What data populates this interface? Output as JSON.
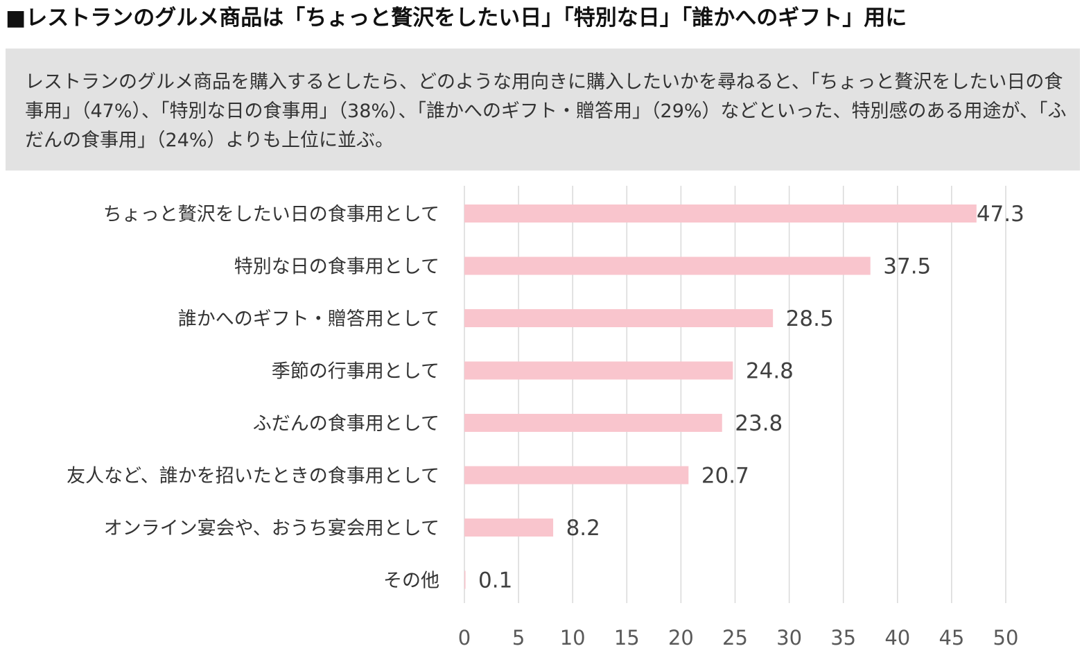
{
  "headline": "■レストランのグルメ商品は「ちょっと贅沢をしたい日」「特別な日」「誰かへのギフト」用に",
  "summary": "レストランのグルメ商品を購入するとしたら、どのような用向きに購入したいかを尋ねると、「ちょっと贅沢をしたい日の食事用」（47%）、「特別な日の食事用」（38%）、「誰かへのギフト・贈答用」（29%）などといった、特別感のある用途が、「ふだんの食事用」（24%）よりも上位に並ぶ。",
  "chart_data": {
    "type": "bar",
    "orientation": "horizontal",
    "categories": [
      "ちょっと贅沢をしたい日の食事用として",
      "特別な日の食事用として",
      "誰かへのギフト・贈答用として",
      "季節の行事用として",
      "ふだんの食事用として",
      "友人など、誰かを招いたときの食事用として",
      "オンライン宴会や、おうち宴会用として",
      "その他"
    ],
    "values": [
      47.3,
      37.5,
      28.5,
      24.8,
      23.8,
      20.7,
      8.2,
      0.1
    ],
    "data_labels": [
      "47.3",
      "37.5",
      "28.5",
      "24.8",
      "23.8",
      "20.7",
      "8.2",
      "0.1"
    ],
    "xlim": [
      0,
      50
    ],
    "x_ticks": [
      0,
      5,
      10,
      15,
      20,
      25,
      30,
      35,
      40,
      45,
      50
    ],
    "grid": "vertical",
    "bar_color": "#f9c5cd",
    "grid_color": "#d9d9d9",
    "label_color": "#404040",
    "tick_color": "#595959"
  }
}
